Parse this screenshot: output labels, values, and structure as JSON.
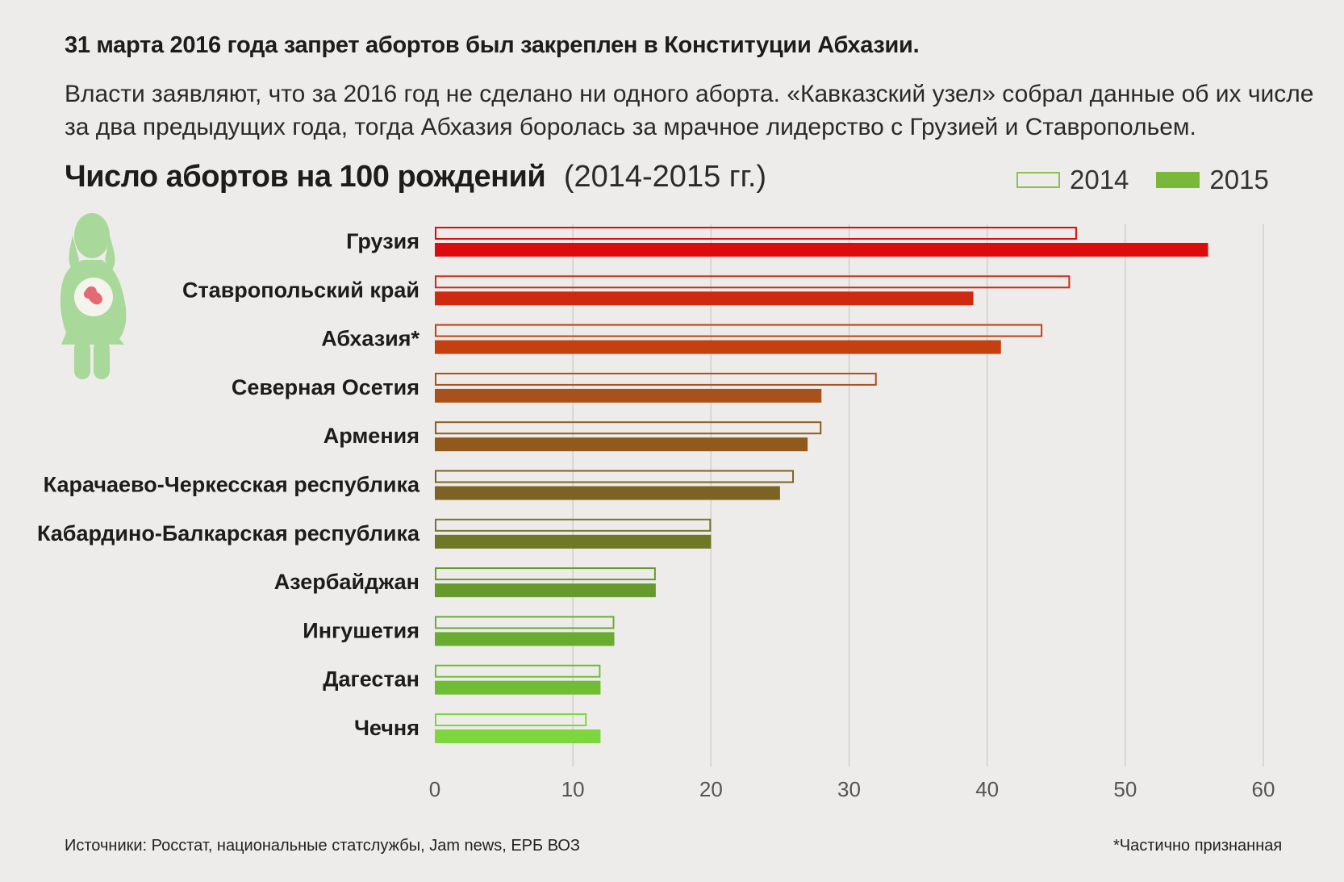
{
  "headline": "31 марта 2016 года запрет абортов был закреплен в Конституции Абхазии.",
  "intro": "Власти заявляют, что за 2016 год не сделано ни одного аборта. «Кавказский узел» собрал данные об их числе за два предыдущих года, тогда Абхазия боролась за мрачное лидерство с Грузией и Ставропольем.",
  "footer": {
    "sources": "Источники: Росстат, национальные статслужбы, Jam news, ЕРБ ВОЗ",
    "note": "*Частично признанная"
  },
  "icons": {
    "figure": "pregnant-woman-icon"
  },
  "chart_data": {
    "type": "bar",
    "orientation": "horizontal",
    "title": "Число абортов на 100 рождений",
    "subtitle": "(2014-2015 гг.)",
    "categories": [
      "Грузия",
      "Ставропольский край",
      "Абхазия*",
      "Северная Осетия",
      "Армения",
      "Карачаево-Черкесская республика",
      "Кабардино-Балкарская республика",
      "Азербайджан",
      "Ингушетия",
      "Дагестан",
      "Чечня"
    ],
    "series": [
      {
        "name": "2014",
        "style": "outline",
        "values": [
          46.5,
          46,
          44,
          32,
          28,
          26,
          20,
          16,
          13,
          12,
          11
        ]
      },
      {
        "name": "2015",
        "style": "filled",
        "values": [
          56,
          39,
          41,
          28,
          27,
          25,
          20,
          16,
          13,
          12,
          12
        ]
      }
    ],
    "category_colors": [
      "#dc0c0c",
      "#cf2a10",
      "#c4400e",
      "#a9511a",
      "#915a1c",
      "#7b6423",
      "#6e7826",
      "#669a2c",
      "#68ac30",
      "#6fbd33",
      "#7dd63b"
    ],
    "legend_colors": {
      "2014": "#8cc152",
      "2015": "#7ab83a"
    },
    "xlim": [
      0,
      60
    ],
    "xticks": [
      0,
      10,
      20,
      30,
      40,
      50,
      60
    ],
    "grid": true,
    "legend_position": "top-right"
  }
}
